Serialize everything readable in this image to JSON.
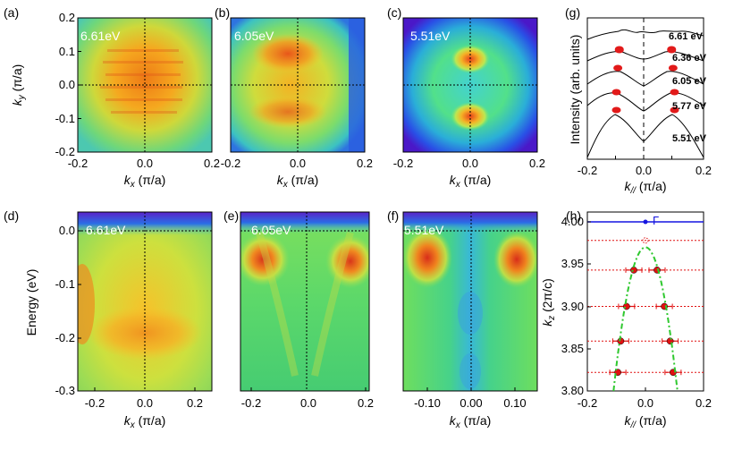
{
  "panels": {
    "a": {
      "label": "(a)",
      "energy": "6.61eV"
    },
    "b": {
      "label": "(b)",
      "energy": "6.05eV"
    },
    "c": {
      "label": "(c)",
      "energy": "5.51eV"
    },
    "d": {
      "label": "(d)",
      "energy": "6.61eV"
    },
    "e": {
      "label": "(e)",
      "energy": "6.05eV"
    },
    "f": {
      "label": "(f)",
      "energy": "5.51eV"
    },
    "g": {
      "label": "(g)"
    },
    "h": {
      "label": "(h)"
    }
  },
  "axes": {
    "ky_main": "k",
    "ky_sub": "y",
    "ky_unit": " (π/a)",
    "kx_main": "k",
    "kx_sub": "x",
    "kx_unit": " (π/a)",
    "kpar_main": "k",
    "kpar_sub": "//",
    "kpar_unit": " (π/a)",
    "kz_main": "k",
    "kz_sub": "z",
    "kz_unit": " (2π/c)",
    "energy": "Energy (eV)",
    "intensity": "Intensity (arb. units)"
  },
  "ticks": {
    "ky": [
      "0.2",
      "0.1",
      "0.0",
      "-0.1",
      "-0.2"
    ],
    "kx_top": [
      "-0.2",
      "0.0",
      "0.2"
    ],
    "energy": [
      "0.0",
      "-0.1",
      "-0.2",
      "-0.3"
    ],
    "kx_d": [
      "-0.2",
      "0.0",
      "0.2"
    ],
    "kx_e": [
      "-0.2",
      "0.0",
      "0.2"
    ],
    "kx_f": [
      "-0.10",
      "0.00",
      "0.10"
    ],
    "kz": [
      "4.00",
      "3.95",
      "3.90",
      "3.85",
      "3.80"
    ],
    "kpar": [
      "-0.2",
      "0.0",
      "0.2"
    ]
  },
  "gamma_label": "Γ",
  "colors": {
    "peak_red": "#e21a1a",
    "fit_green": "#2ec82e",
    "gamma_blue": "#1515e0",
    "level_red": "#e01010"
  },
  "chart_data": [
    {
      "type": "line",
      "panel": "g",
      "xlabel": "k// (π/a)",
      "ylabel": "Intensity (arb. units)",
      "xlim": [
        -0.2,
        0.2
      ],
      "series": [
        {
          "name": "6.61 eV",
          "peaks": [
            -0.09,
            0.09
          ]
        },
        {
          "name": "6.36 eV",
          "peaks": [
            -0.09,
            0.09
          ]
        },
        {
          "name": "6.05 eV",
          "peaks": [
            -0.095,
            0.095
          ]
        },
        {
          "name": "5.77 eV",
          "peaks": [
            -0.1,
            0.1
          ]
        },
        {
          "name": "5.51 eV",
          "peaks": [
            -0.1,
            0.1
          ]
        }
      ]
    },
    {
      "type": "scatter",
      "panel": "h",
      "xlabel": "k// (π/a)",
      "ylabel": "kz (2π/c)",
      "xlim": [
        -0.2,
        0.2
      ],
      "ylim": [
        3.8,
        4.0
      ],
      "gamma": {
        "x": 0.0,
        "y": 4.0
      },
      "points": [
        {
          "y": 3.978,
          "x": [
            0.0
          ]
        },
        {
          "y": 3.943,
          "x": [
            -0.04,
            0.04
          ]
        },
        {
          "y": 3.9,
          "x": [
            -0.065,
            0.065
          ]
        },
        {
          "y": 3.859,
          "x": [
            -0.085,
            0.085
          ]
        },
        {
          "y": 3.822,
          "x": [
            -0.095,
            0.095
          ]
        }
      ],
      "fit": {
        "type": "parabola",
        "apex": 3.97
      }
    }
  ]
}
